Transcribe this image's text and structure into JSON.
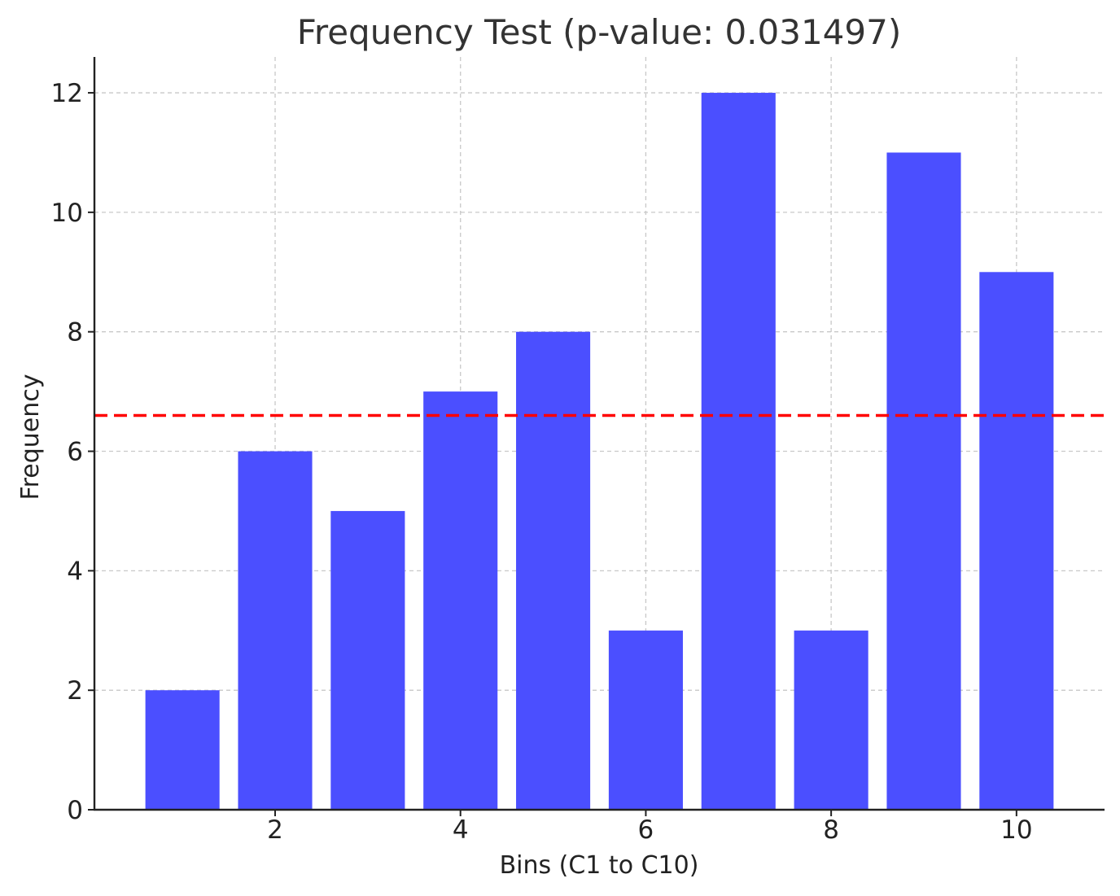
{
  "chart_data": {
    "type": "bar",
    "title": "Frequency Test (p-value: 0.031497)",
    "xlabel": "Bins (C1 to C10)",
    "ylabel": "Frequency",
    "x": [
      1,
      2,
      3,
      4,
      5,
      6,
      7,
      8,
      9,
      10
    ],
    "values": [
      2,
      6,
      5,
      7,
      8,
      3,
      12,
      3,
      11,
      9
    ],
    "xlim": [
      0.05,
      10.95
    ],
    "ylim": [
      0,
      12.6
    ],
    "xticks": [
      2,
      4,
      6,
      8,
      10
    ],
    "yticks": [
      0,
      2,
      4,
      6,
      8,
      10,
      12
    ],
    "bar_color": "#4b4fff",
    "reference_line": {
      "y": 6.6,
      "color": "#ff0000",
      "style": "dashed"
    },
    "grid": true,
    "legend": "none"
  }
}
